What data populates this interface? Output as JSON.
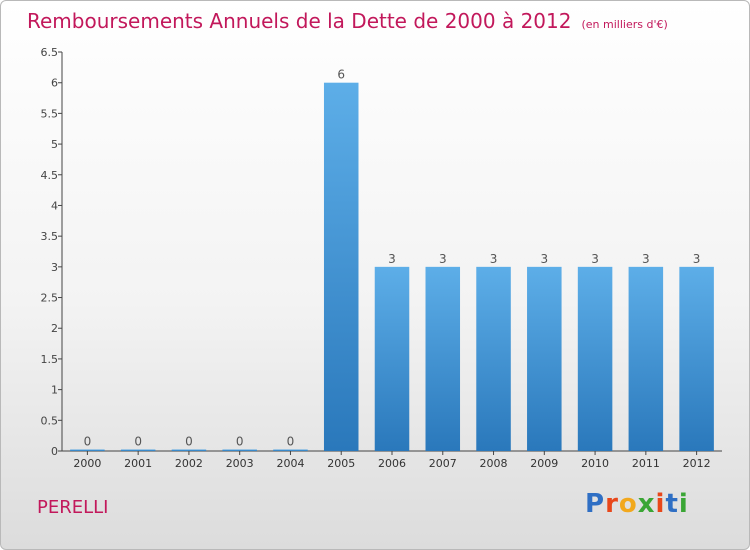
{
  "header": {
    "title": "Remboursements Annuels de la Dette de 2000 à 2012",
    "subtitle": "(en milliers d'€)"
  },
  "footer": {
    "commune": "PERELLI",
    "brand_letters": [
      "P",
      "r",
      "o",
      "x",
      "i",
      "t",
      "i"
    ],
    "brand_colors": [
      "#2f6fc4",
      "#e8471a",
      "#f2a81d",
      "#3aa635",
      "#e8471a",
      "#2f6fc4",
      "#3aa635"
    ]
  },
  "chart_data": {
    "type": "bar",
    "categories": [
      "2000",
      "2001",
      "2002",
      "2003",
      "2004",
      "2005",
      "2006",
      "2007",
      "2008",
      "2009",
      "2010",
      "2011",
      "2012"
    ],
    "values": [
      0,
      0,
      0,
      0,
      0,
      6,
      3,
      3,
      3,
      3,
      3,
      3,
      3
    ],
    "data_labels": [
      "0",
      "0",
      "0",
      "0",
      "0",
      "6",
      "3",
      "3",
      "3",
      "3",
      "3",
      "3",
      "3"
    ],
    "yticks": [
      "0",
      "0.5",
      "1",
      "1.5",
      "2",
      "2.5",
      "3",
      "3.5",
      "4",
      "4.5",
      "5",
      "5.5",
      "6",
      "6.5"
    ],
    "ylim": [
      0,
      6.5
    ],
    "bar_color": "#4f9fdc",
    "grid": false
  }
}
